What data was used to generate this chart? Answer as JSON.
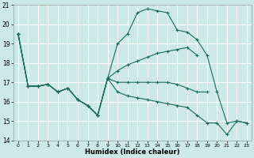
{
  "background_color": "#cce8e8",
  "grid_color": "#ffffff",
  "line_color": "#1a6b5a",
  "xlim": [
    -0.5,
    23.5
  ],
  "ylim": [
    14.0,
    21.0
  ],
  "yticks": [
    14,
    15,
    16,
    17,
    18,
    19,
    20,
    21
  ],
  "xticks": [
    0,
    1,
    2,
    3,
    4,
    5,
    6,
    7,
    8,
    9,
    10,
    11,
    12,
    13,
    14,
    15,
    16,
    17,
    18,
    19,
    20,
    21,
    22,
    23
  ],
  "xlabel": "Humidex (Indice chaleur)",
  "series": [
    {
      "x": [
        0,
        1,
        2,
        3,
        4,
        5,
        6,
        7,
        8,
        9,
        10,
        11,
        12,
        13,
        14,
        15,
        16,
        17,
        18,
        19,
        20,
        21,
        22,
        23
      ],
      "y": [
        19.5,
        16.8,
        16.8,
        16.9,
        16.5,
        16.7,
        16.1,
        15.8,
        15.3,
        17.2,
        19.0,
        19.5,
        20.6,
        20.8,
        20.7,
        20.6,
        19.7,
        19.6,
        19.2,
        18.4,
        16.5,
        14.9,
        15.0,
        14.9
      ]
    },
    {
      "x": [
        0,
        1,
        2,
        3,
        4,
        5,
        6,
        7,
        8,
        9,
        10,
        11,
        12,
        13,
        14,
        15,
        16,
        17,
        18
      ],
      "y": [
        19.5,
        16.8,
        16.8,
        16.9,
        16.5,
        16.7,
        16.1,
        15.8,
        15.3,
        17.2,
        17.6,
        17.9,
        18.1,
        18.3,
        18.5,
        18.6,
        18.7,
        18.8,
        18.4
      ]
    },
    {
      "x": [
        0,
        1,
        2,
        3,
        4,
        5,
        6,
        7,
        8,
        9,
        10,
        11,
        12,
        13,
        14,
        15,
        16,
        17,
        18,
        19
      ],
      "y": [
        19.5,
        16.8,
        16.8,
        16.9,
        16.5,
        16.7,
        16.1,
        15.8,
        15.3,
        17.2,
        17.0,
        17.0,
        17.0,
        17.0,
        17.0,
        17.0,
        16.9,
        16.7,
        16.5,
        16.5
      ]
    },
    {
      "x": [
        0,
        1,
        2,
        3,
        4,
        5,
        6,
        7,
        8,
        9,
        10,
        11,
        12,
        13,
        14,
        15,
        16,
        17,
        18,
        19,
        20,
        21,
        22,
        23
      ],
      "y": [
        19.5,
        16.8,
        16.8,
        16.9,
        16.5,
        16.7,
        16.1,
        15.8,
        15.3,
        17.2,
        16.5,
        16.3,
        16.2,
        16.1,
        16.0,
        15.9,
        15.8,
        15.7,
        15.3,
        14.9,
        14.9,
        14.3,
        15.0,
        14.9
      ]
    }
  ]
}
